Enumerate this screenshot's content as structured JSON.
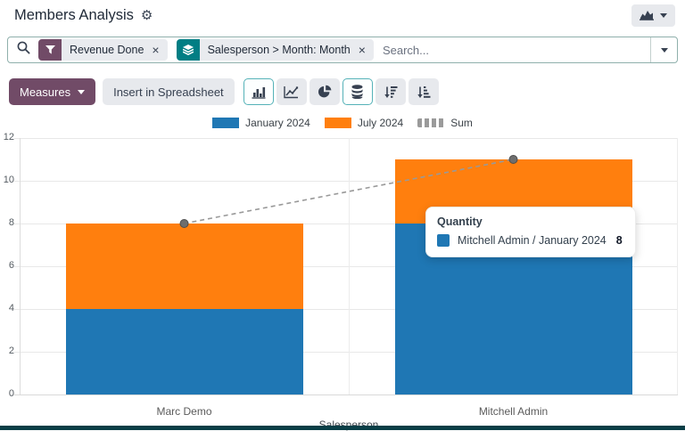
{
  "header": {
    "title": "Members Analysis"
  },
  "search": {
    "placeholder": "Search...",
    "facets": [
      {
        "type": "filter",
        "label": "Revenue Done",
        "remove": "×"
      },
      {
        "type": "groupby",
        "label": "Salesperson > Month: Month",
        "remove": "×"
      }
    ]
  },
  "toolbar": {
    "measures_label": "Measures",
    "insert_label": "Insert in Spreadsheet",
    "chart_buttons": [
      {
        "name": "bar-chart-button",
        "active": true
      },
      {
        "name": "line-chart-button",
        "active": false
      },
      {
        "name": "pie-chart-button",
        "active": false
      },
      {
        "name": "stacked-button",
        "active": true
      },
      {
        "name": "sort-desc-button",
        "active": false
      },
      {
        "name": "sort-asc-button",
        "active": false
      }
    ]
  },
  "chart_data": {
    "type": "bar",
    "stacked": true,
    "categories": [
      "Marc Demo",
      "Mitchell Admin"
    ],
    "series": [
      {
        "name": "January 2024",
        "type": "bar",
        "color": "#1f77b4",
        "values": [
          4,
          8
        ]
      },
      {
        "name": "July 2024",
        "type": "bar",
        "color": "#ff7f0e",
        "values": [
          4,
          3
        ]
      },
      {
        "name": "Sum",
        "type": "line",
        "style": "dashed",
        "color": "#999999",
        "values": [
          8,
          11
        ]
      }
    ],
    "xlabel": "Salesperson",
    "ylabel": "",
    "ylim": [
      0,
      12
    ],
    "ytick_step": 2,
    "grid": true,
    "legend_position": "top"
  },
  "tooltip": {
    "title": "Quantity",
    "row_label": "Mitchell Admin / January 2024",
    "row_value": "8",
    "swatch_color": "#1f77b4"
  },
  "colors": {
    "primary_purple": "#714B67",
    "groupby_teal": "#017E84",
    "bar_blue": "#1f77b4",
    "bar_orange": "#ff7f0e",
    "sum_gray": "#999999",
    "active_border": "#55b2b8",
    "bottom_strip": "#093e46"
  }
}
